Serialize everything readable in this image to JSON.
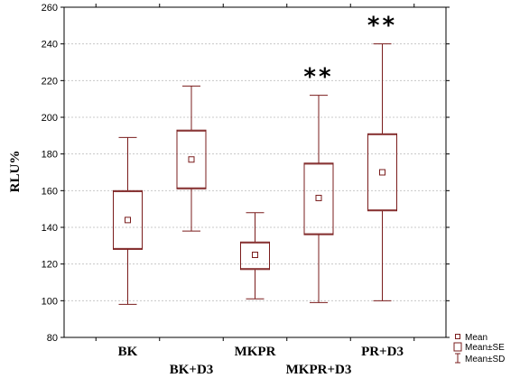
{
  "chart_data": {
    "type": "box",
    "ylabel": "RLU%",
    "xlabel": "",
    "ylim": [
      80,
      260
    ],
    "yticks": [
      80,
      100,
      120,
      140,
      160,
      180,
      200,
      220,
      240,
      260
    ],
    "grid": true,
    "categories": [
      "BK",
      "BK+D3",
      "MKPR",
      "MKPR+D3",
      "PR+D3"
    ],
    "series": [
      {
        "category": "BK",
        "mean": 144,
        "se_low": 128,
        "se_high": 160,
        "sd_low": 98,
        "sd_high": 189,
        "annotation": ""
      },
      {
        "category": "BK+D3",
        "mean": 177,
        "se_low": 161,
        "se_high": 193,
        "sd_low": 138,
        "sd_high": 217,
        "annotation": ""
      },
      {
        "category": "MKPR",
        "mean": 125,
        "se_low": 117,
        "se_high": 132,
        "sd_low": 101,
        "sd_high": 148,
        "annotation": ""
      },
      {
        "category": "MKPR+D3",
        "mean": 156,
        "se_low": 136,
        "se_high": 175,
        "sd_low": 99,
        "sd_high": 212,
        "annotation": "**"
      },
      {
        "category": "PR+D3",
        "mean": 170,
        "se_low": 149,
        "se_high": 191,
        "sd_low": 100,
        "sd_high": 240,
        "annotation": "**"
      }
    ],
    "legend": {
      "placement": "bottom-right",
      "items": [
        "Mean",
        "Mean±SE",
        "Mean±SD"
      ]
    },
    "colors": {
      "box": "#7a1c1c",
      "grid": "#c8c8c8",
      "axis": "#000000"
    }
  }
}
